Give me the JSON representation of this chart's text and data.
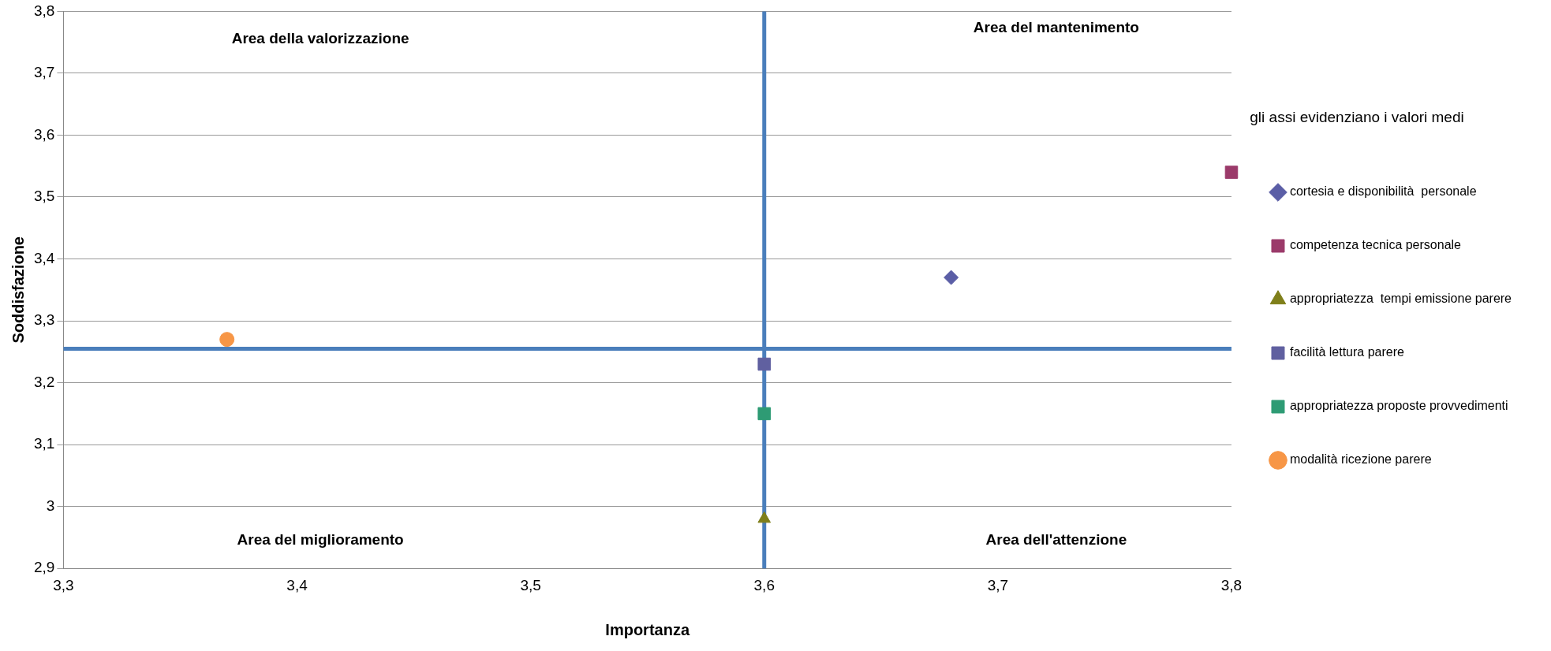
{
  "chart_data": {
    "type": "scatter",
    "xlabel": "Importanza",
    "ylabel": "Soddisfazione",
    "xlim": [
      3.3,
      3.8
    ],
    "xticks": [
      {
        "value": 3.3,
        "label": "3,3"
      },
      {
        "value": 3.4,
        "label": "3,4"
      },
      {
        "value": 3.5,
        "label": "3,5"
      },
      {
        "value": 3.6,
        "label": "3,6"
      },
      {
        "value": 3.7,
        "label": "3,7"
      },
      {
        "value": 3.8,
        "label": "3,8"
      }
    ],
    "ylim": [
      2.9,
      3.8
    ],
    "yticks": [
      {
        "value": 2.9,
        "label": "2,9"
      },
      {
        "value": 3,
        "label": "3"
      },
      {
        "value": 3.1,
        "label": "3,1"
      },
      {
        "value": 3.2,
        "label": "3,2"
      },
      {
        "value": 3.3,
        "label": "3,3"
      },
      {
        "value": 3.4,
        "label": "3,4"
      },
      {
        "value": 3.5,
        "label": "3,5"
      },
      {
        "value": 3.6,
        "label": "3,6"
      },
      {
        "value": 3.7,
        "label": "3,7"
      },
      {
        "value": 3.8,
        "label": "3,8"
      }
    ],
    "grid": "y",
    "legend": "right",
    "series": [
      {
        "name": "cortesia e disponibilità  personale",
        "color": "#5b5ea6",
        "marker": "diamond",
        "x": [
          3.68
        ],
        "values": [
          3.37
        ]
      },
      {
        "name": "competenza tecnica personale",
        "color": "#9b3a6a",
        "marker": "square",
        "x": [
          3.8
        ],
        "values": [
          3.54
        ]
      },
      {
        "name": "appropriatezza  tempi emissione parere",
        "color": "#7f7f1a",
        "marker": "triangle",
        "x": [
          3.6
        ],
        "values": [
          2.98
        ]
      },
      {
        "name": "facilità lettura parere",
        "color": "#6060a0",
        "marker": "square",
        "x": [
          3.6
        ],
        "values": [
          3.23
        ]
      },
      {
        "name": "appropriatezza proposte provvedimenti",
        "color": "#2e9b74",
        "marker": "square",
        "x": [
          3.6
        ],
        "values": [
          3.15
        ]
      },
      {
        "name": "modalità ricezione parere",
        "color": "#f79646",
        "marker": "circle",
        "x": [
          3.37
        ],
        "values": [
          3.27
        ]
      }
    ],
    "ref_lines": [
      {
        "axis": "x",
        "value": 3.6,
        "color": "#4a7ebb"
      },
      {
        "axis": "y",
        "value": 3.255,
        "color": "#4a7ebb"
      }
    ],
    "annotations": [
      "Area della valorizzazione",
      "Area del mantenimento",
      "Area del miglioramento",
      "Area dell'attenzione",
      "gli assi evidenziano i valori medi"
    ]
  }
}
